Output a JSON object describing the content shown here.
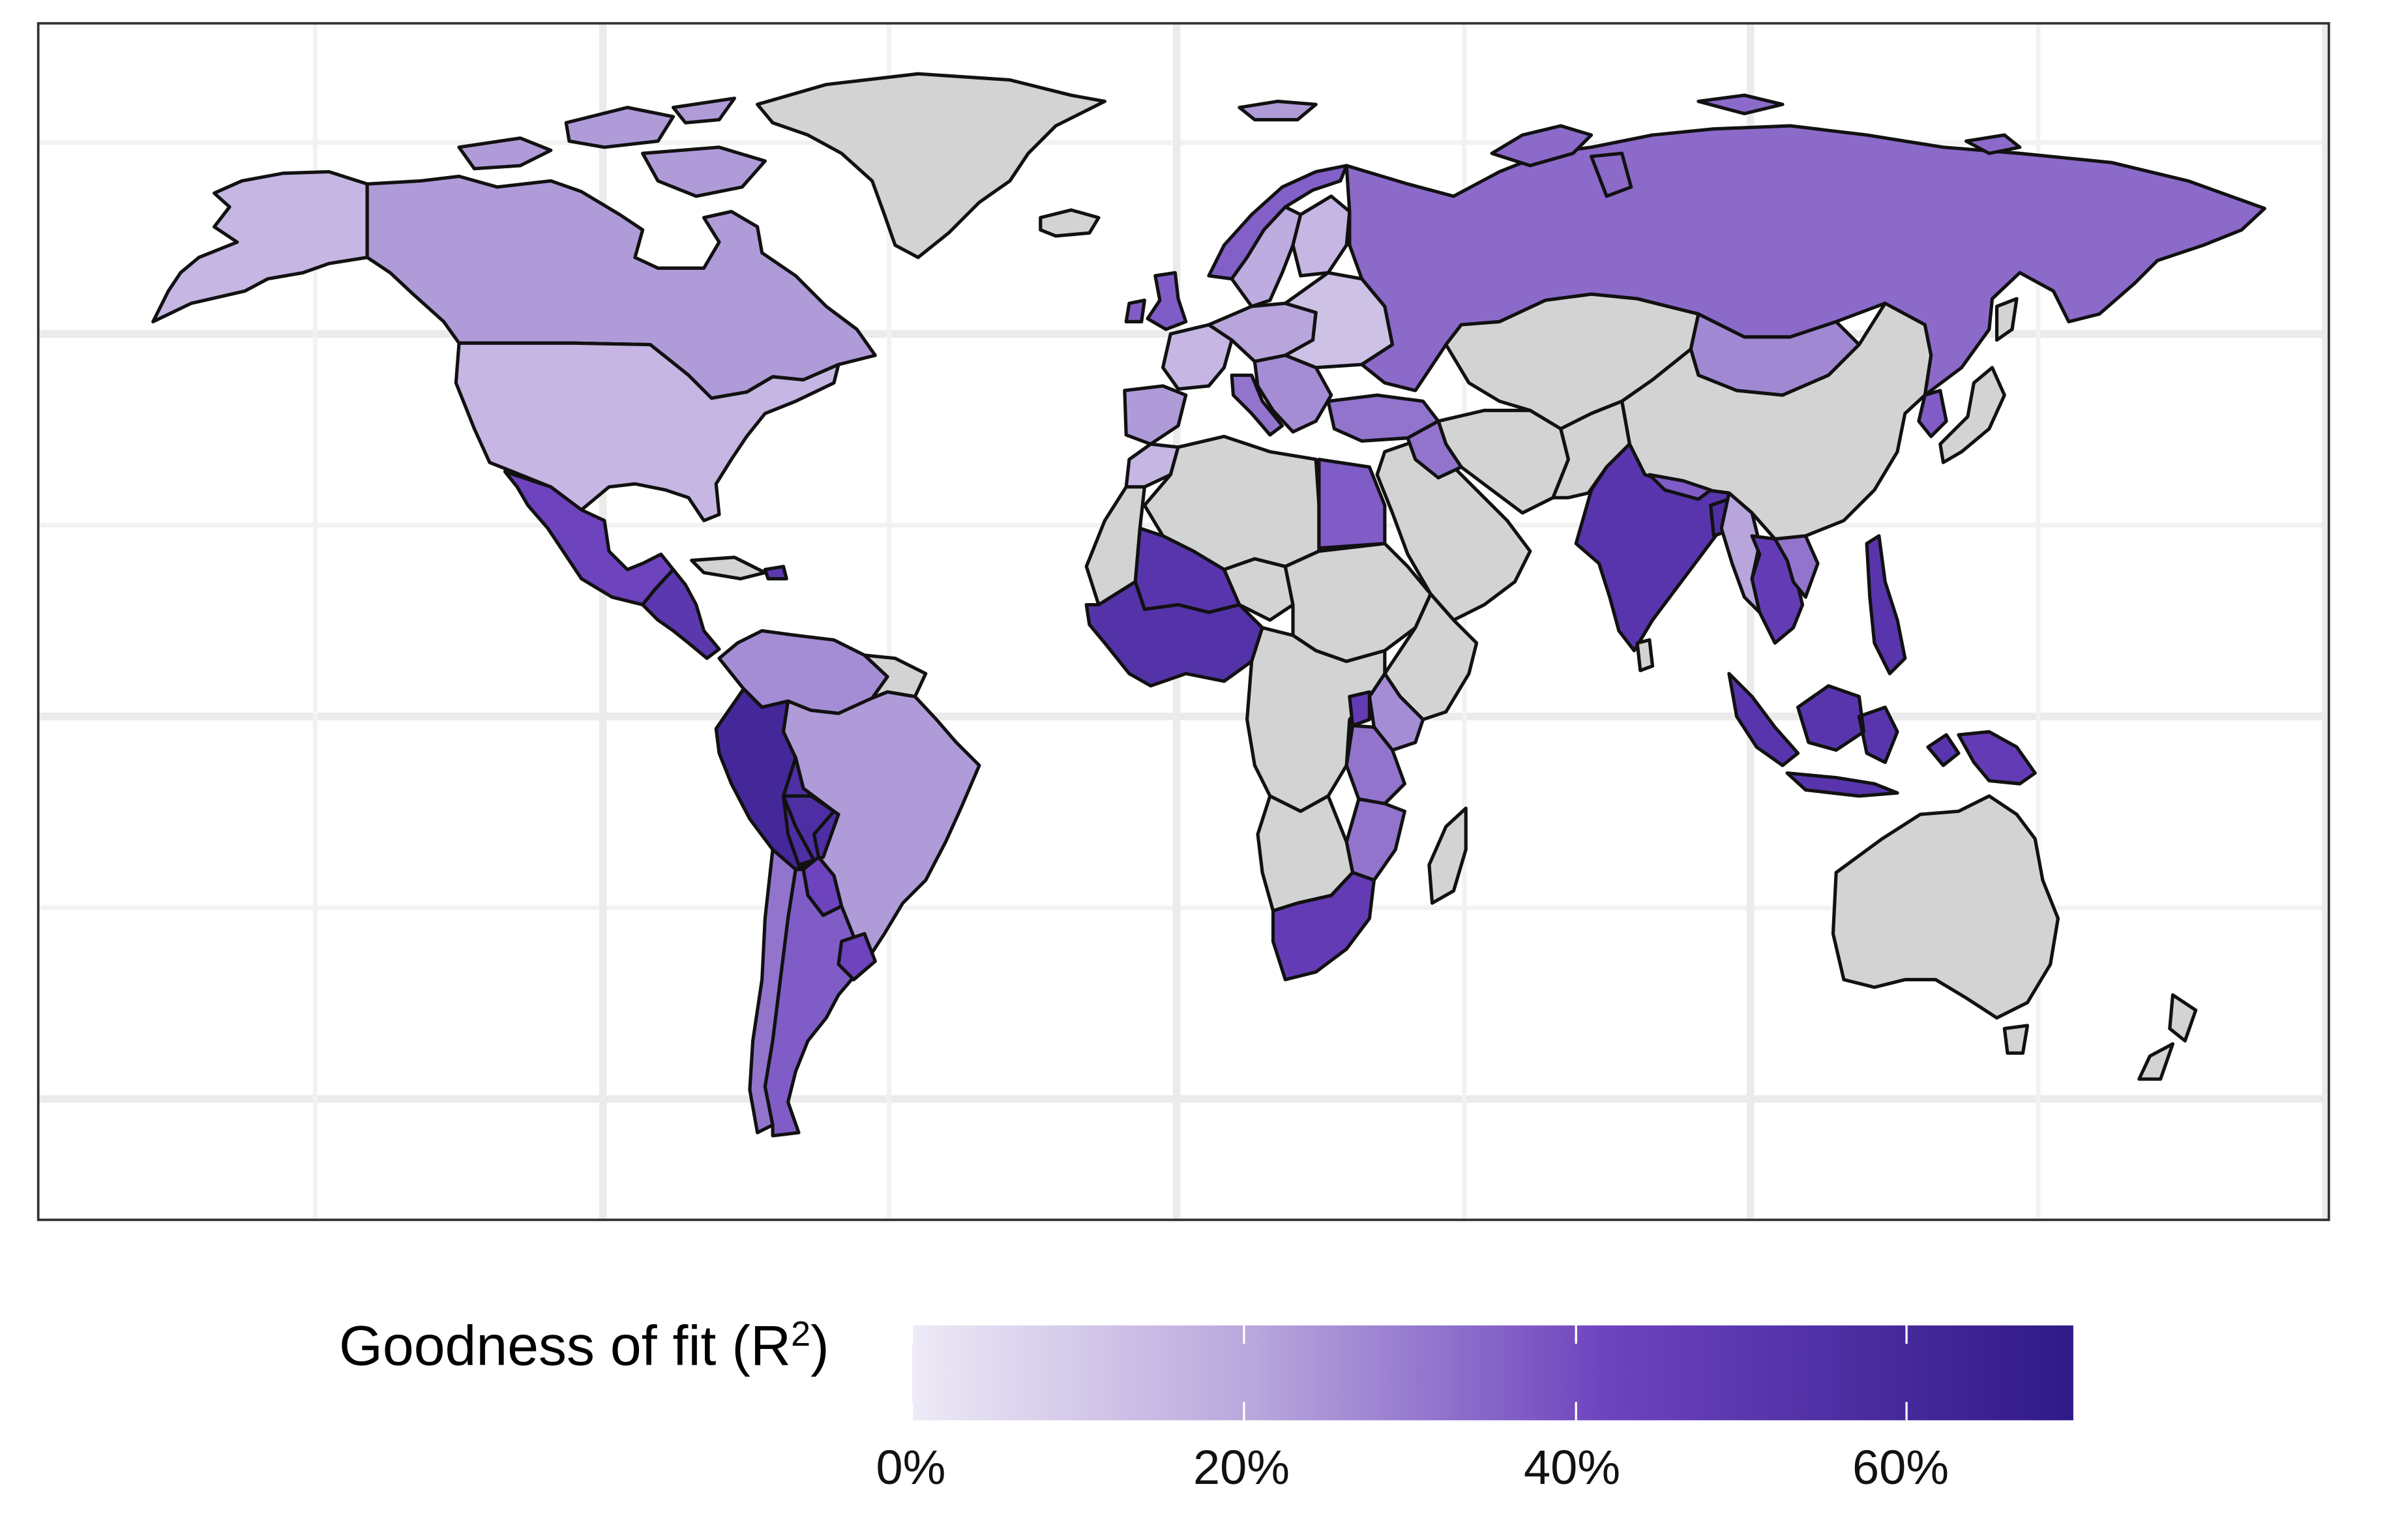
{
  "legend": {
    "title_prefix": "Goodness of fit (R",
    "title_sup": "2",
    "title_suffix": ")",
    "ticks": [
      "0%",
      "20%",
      "40%",
      "60%"
    ],
    "tick_values": [
      0,
      0.2,
      0.4,
      0.6
    ],
    "domain": [
      0,
      0.7
    ],
    "color_low": "#eeeaf6",
    "color_high": "#2f1a87"
  },
  "missing_color": "#d3d3d3",
  "chart_data": {
    "type": "choropleth",
    "variable": "R2",
    "scale": "continuous purple",
    "regions": [
      {
        "name": "Alaska",
        "value": 0.15
      },
      {
        "name": "Canada",
        "value": 0.22
      },
      {
        "name": "Canadian Arctic Islands",
        "value": 0.22
      },
      {
        "name": "United States",
        "value": 0.15
      },
      {
        "name": "Mexico",
        "value": 0.4
      },
      {
        "name": "Central America",
        "value": 0.48
      },
      {
        "name": "Cuba",
        "value": null
      },
      {
        "name": "Greenland",
        "value": null
      },
      {
        "name": "Iceland",
        "value": null
      },
      {
        "name": "Colombia & Venezuela",
        "value": 0.25
      },
      {
        "name": "Guianas",
        "value": null
      },
      {
        "name": "Ecuador & Peru",
        "value": 0.6
      },
      {
        "name": "Brazil",
        "value": 0.22
      },
      {
        "name": "Bolivia",
        "value": 0.55
      },
      {
        "name": "Paraguay",
        "value": 0.4
      },
      {
        "name": "Chile",
        "value": 0.3
      },
      {
        "name": "Argentina",
        "value": 0.35
      },
      {
        "name": "Uruguay",
        "value": 0.4
      },
      {
        "name": "Norway",
        "value": 0.34
      },
      {
        "name": "Sweden",
        "value": 0.18
      },
      {
        "name": "Finland",
        "value": 0.15
      },
      {
        "name": "United Kingdom",
        "value": 0.35
      },
      {
        "name": "Western Europe",
        "value": 0.15
      },
      {
        "name": "Central Europe",
        "value": 0.2
      },
      {
        "name": "Eastern Europe",
        "value": 0.12
      },
      {
        "name": "Balkans",
        "value": 0.25
      },
      {
        "name": "Spain & Portugal",
        "value": 0.22
      },
      {
        "name": "Italy",
        "value": 0.3
      },
      {
        "name": "Turkey",
        "value": 0.3
      },
      {
        "name": "Russia",
        "value": 0.32
      },
      {
        "name": "Kazakhstan & Central Asia",
        "value": null
      },
      {
        "name": "Mongolia",
        "value": 0.26
      },
      {
        "name": "China",
        "value": null
      },
      {
        "name": "Japan",
        "value": null
      },
      {
        "name": "Korea",
        "value": 0.35
      },
      {
        "name": "Middle East",
        "value": null
      },
      {
        "name": "Iraq",
        "value": 0.3
      },
      {
        "name": "Afghanistan & Pakistan",
        "value": null
      },
      {
        "name": "India",
        "value": 0.5
      },
      {
        "name": "Bangladesh",
        "value": 0.55
      },
      {
        "name": "Nepal",
        "value": 0.35
      },
      {
        "name": "Sri Lanka",
        "value": null
      },
      {
        "name": "Myanmar",
        "value": 0.2
      },
      {
        "name": "Thailand & Indochina",
        "value": 0.45
      },
      {
        "name": "Vietnam",
        "value": 0.3
      },
      {
        "name": "Philippines",
        "value": 0.5
      },
      {
        "name": "Malaysia & Indonesia",
        "value": 0.5
      },
      {
        "name": "Papua New Guinea",
        "value": 0.45
      },
      {
        "name": "Australia",
        "value": null
      },
      {
        "name": "New Zealand",
        "value": null
      },
      {
        "name": "Morocco",
        "value": 0.15
      },
      {
        "name": "Western Sahara & Mauritania",
        "value": null
      },
      {
        "name": "Algeria & Libya",
        "value": null
      },
      {
        "name": "Egypt",
        "value": 0.35
      },
      {
        "name": "Mali",
        "value": 0.5
      },
      {
        "name": "Niger",
        "value": null
      },
      {
        "name": "West Africa Coast",
        "value": 0.52
      },
      {
        "name": "Chad & Sudan",
        "value": null
      },
      {
        "name": "Ethiopia & Somalia",
        "value": null
      },
      {
        "name": "Kenya",
        "value": 0.25
      },
      {
        "name": "Central Africa",
        "value": null
      },
      {
        "name": "Rwanda & Burundi",
        "value": 0.45
      },
      {
        "name": "Tanzania",
        "value": 0.3
      },
      {
        "name": "Mozambique & Malawi",
        "value": 0.3
      },
      {
        "name": "Southern Africa interior",
        "value": null
      },
      {
        "name": "South Africa",
        "value": 0.45
      },
      {
        "name": "Madagascar",
        "value": null
      }
    ]
  }
}
